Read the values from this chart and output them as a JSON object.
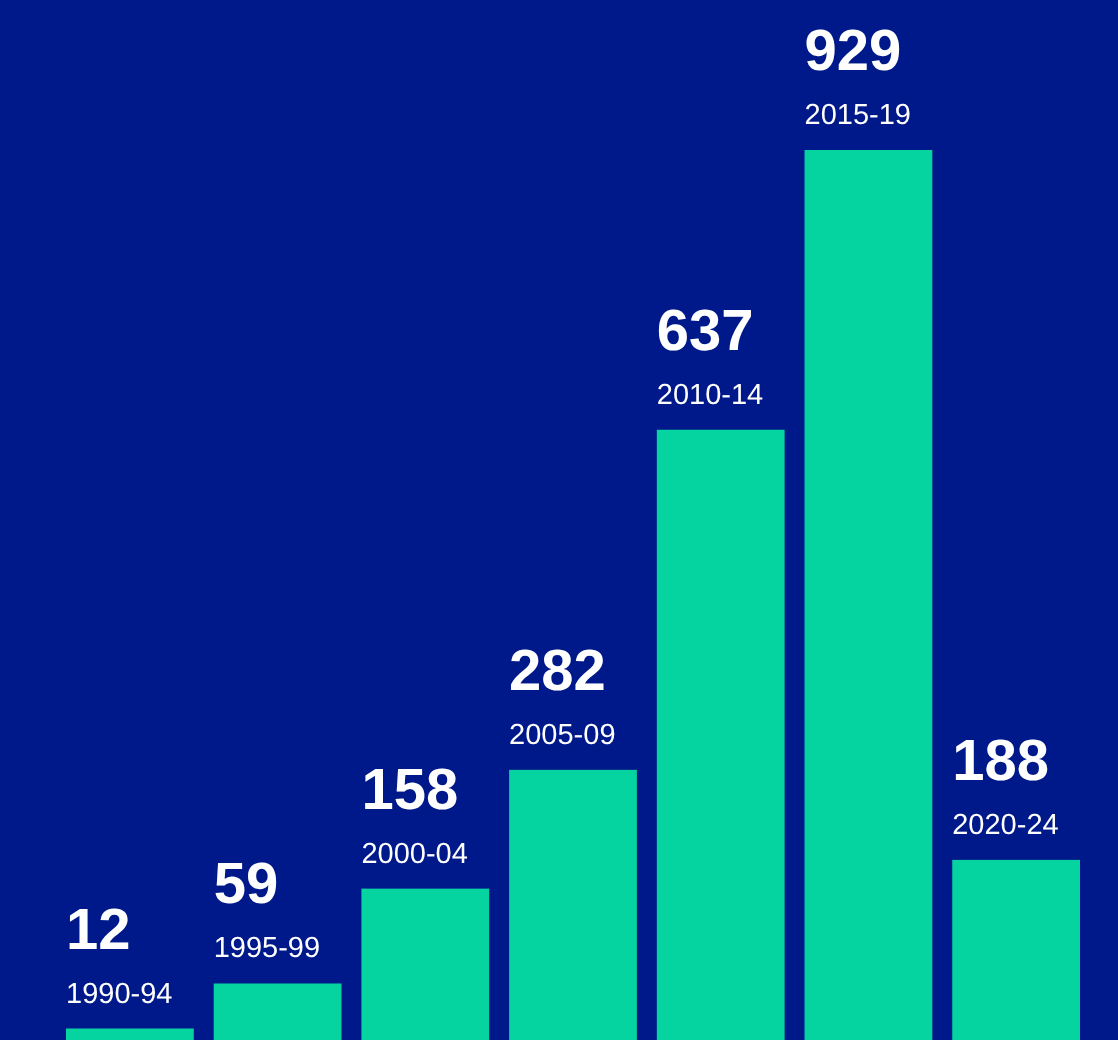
{
  "chart_data": {
    "type": "bar",
    "categories": [
      "1990-94",
      "1995-99",
      "2000-04",
      "2005-09",
      "2010-14",
      "2015-19",
      "2020-24"
    ],
    "values": [
      12,
      59,
      158,
      282,
      637,
      929,
      188
    ],
    "color": "#05d4a0",
    "data_labels": true
  }
}
